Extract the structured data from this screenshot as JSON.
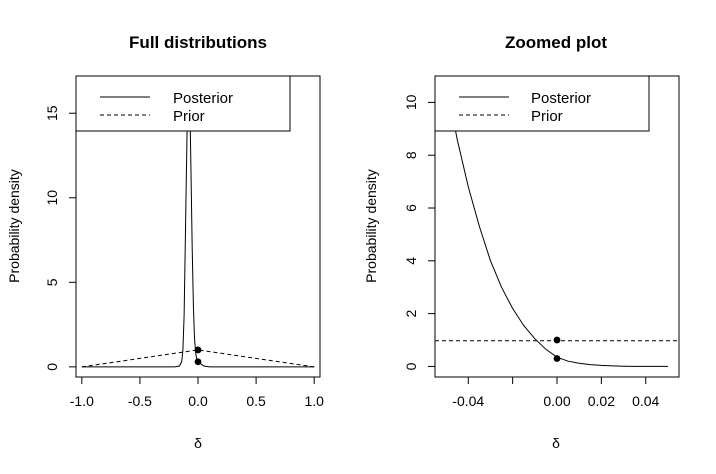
{
  "chart_data": [
    {
      "type": "line",
      "title": "Full distributions",
      "xlabel": "δ",
      "ylabel": "Probability density",
      "xlim": [
        -1.05,
        1.05
      ],
      "ylim": [
        -0.6,
        17.2
      ],
      "xticks": [
        -1.0,
        -0.5,
        0.0,
        0.5,
        1.0
      ],
      "xtick_labels": [
        "-1.0",
        "-0.5",
        "0.0",
        "0.5",
        "1.0"
      ],
      "yticks": [
        0,
        5,
        10,
        15
      ],
      "ytick_labels": [
        "0",
        "5",
        "10",
        "15"
      ],
      "legend": {
        "position": "top-left",
        "entries": [
          "Posterior",
          "Prior"
        ]
      },
      "series": [
        {
          "name": "Posterior",
          "style": "solid",
          "x": [
            -1.0,
            -0.5,
            -0.2,
            -0.16,
            -0.14,
            -0.13,
            -0.12,
            -0.11,
            -0.1,
            -0.09,
            -0.08,
            -0.07,
            -0.06,
            -0.05,
            -0.04,
            -0.03,
            -0.02,
            -0.01,
            0.0,
            0.05,
            0.1,
            0.5,
            1.0
          ],
          "y": [
            0,
            0,
            0,
            0.05,
            0.3,
            1.0,
            3.0,
            7.0,
            11.5,
            15.5,
            17.2,
            15.5,
            11.5,
            7.0,
            3.6,
            1.7,
            0.8,
            0.45,
            0.3,
            0.05,
            0.0,
            0.0,
            0.0
          ]
        },
        {
          "name": "Prior",
          "style": "dashed",
          "x": [
            -1.0,
            -0.8,
            -0.6,
            -0.4,
            -0.2,
            0.0,
            0.2,
            0.4,
            0.6,
            0.8,
            1.0
          ],
          "y": [
            0.0,
            0.2,
            0.4,
            0.6,
            0.8,
            1.0,
            0.8,
            0.6,
            0.4,
            0.2,
            0.0
          ]
        }
      ],
      "points": [
        {
          "x": 0.0,
          "y": 1.0
        },
        {
          "x": 0.0,
          "y": 0.3
        }
      ]
    },
    {
      "type": "line",
      "title": "Zoomed plot",
      "xlabel": "δ",
      "ylabel": "Probability density",
      "xlim": [
        -0.055,
        0.055
      ],
      "ylim": [
        -0.4,
        11.0
      ],
      "xticks": [
        -0.04,
        -0.02,
        0.0,
        0.02,
        0.04
      ],
      "xtick_labels": [
        "-0.04",
        "",
        "0.00",
        "0.02",
        "0.04"
      ],
      "yticks": [
        0,
        2,
        4,
        6,
        8,
        10
      ],
      "ytick_labels": [
        "0",
        "2",
        "4",
        "6",
        "8",
        "10"
      ],
      "legend": {
        "position": "top-left",
        "entries": [
          "Posterior",
          "Prior"
        ]
      },
      "series": [
        {
          "name": "Posterior",
          "style": "solid",
          "x": [
            -0.055,
            -0.05,
            -0.045,
            -0.04,
            -0.035,
            -0.03,
            -0.025,
            -0.02,
            -0.015,
            -0.01,
            -0.005,
            0.0,
            0.005,
            0.01,
            0.015,
            0.02,
            0.025,
            0.03,
            0.035,
            0.04,
            0.05
          ],
          "y": [
            13.5,
            10.8,
            8.6,
            6.8,
            5.3,
            4.0,
            3.0,
            2.2,
            1.55,
            1.05,
            0.65,
            0.35,
            0.2,
            0.12,
            0.07,
            0.04,
            0.02,
            0.01,
            0.0,
            0.0,
            0.0
          ]
        },
        {
          "name": "Prior",
          "style": "dashed",
          "x": [
            -0.055,
            0.055
          ],
          "y": [
            0.97,
            0.97
          ]
        }
      ],
      "points": [
        {
          "x": 0.0,
          "y": 1.0
        },
        {
          "x": 0.0,
          "y": 0.3
        }
      ]
    }
  ]
}
